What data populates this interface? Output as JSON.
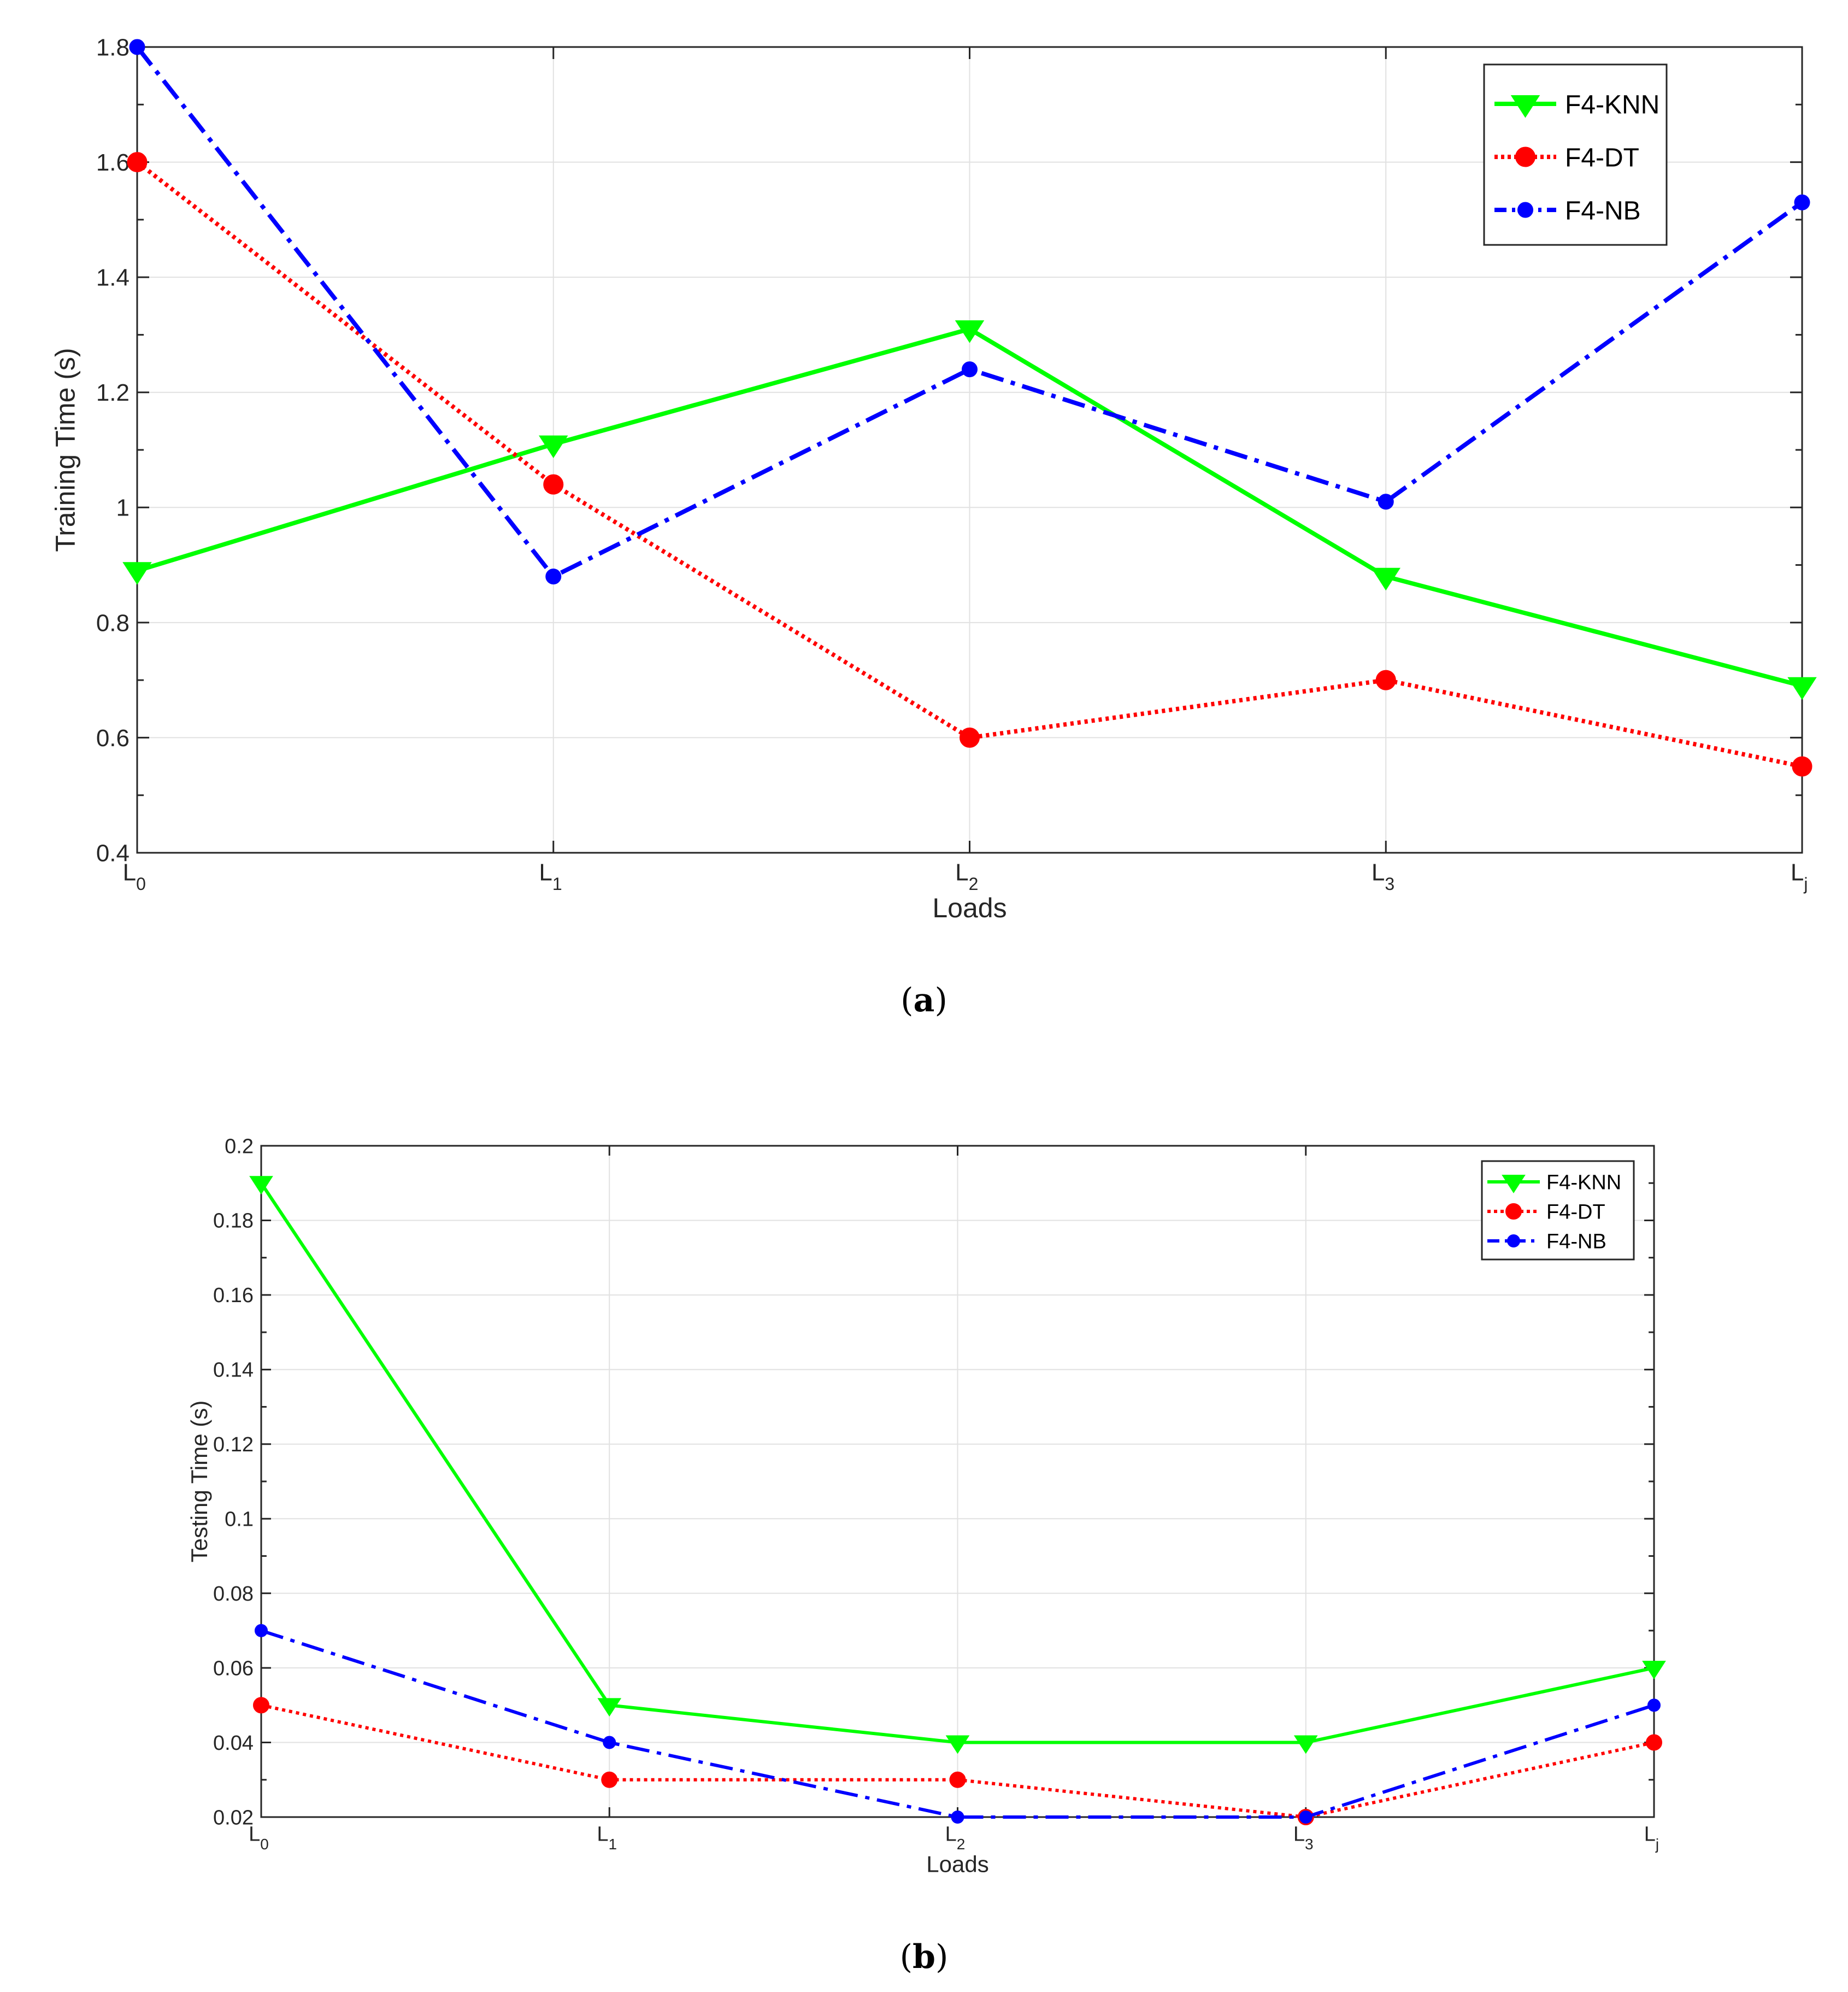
{
  "chart_data": [
    {
      "type": "line",
      "panel": "a",
      "caption_letter": "a",
      "categories": [
        {
          "base": "L",
          "sub": "0"
        },
        {
          "base": "L",
          "sub": "1"
        },
        {
          "base": "L",
          "sub": "2"
        },
        {
          "base": "L",
          "sub": "3"
        },
        {
          "base": "L",
          "sub": "j"
        }
      ],
      "xlabel": "Loads",
      "ylabel": "Training Time (s)",
      "ylim": [
        0.4,
        1.8
      ],
      "yticks": [
        "0.4",
        "0.6",
        "0.8",
        "1",
        "1.2",
        "1.4",
        "1.6",
        "1.8"
      ],
      "grid": true,
      "legend_position": "top-right",
      "series": [
        {
          "name": "F4-KNN",
          "color": "#00ff00",
          "style": "solid",
          "marker": "triangle-down",
          "values": [
            0.89,
            1.11,
            1.31,
            0.88,
            0.69
          ]
        },
        {
          "name": "F4-DT",
          "color": "#ff0000",
          "style": "dotted",
          "marker": "circle",
          "values": [
            1.6,
            1.04,
            0.6,
            0.7,
            0.55
          ]
        },
        {
          "name": "F4-NB",
          "color": "#0000ff",
          "style": "dash-dot",
          "marker": "circle-small",
          "values": [
            1.8,
            0.88,
            1.24,
            1.01,
            1.53
          ]
        }
      ]
    },
    {
      "type": "line",
      "panel": "b",
      "caption_letter": "b",
      "categories": [
        {
          "base": "L",
          "sub": "0"
        },
        {
          "base": "L",
          "sub": "1"
        },
        {
          "base": "L",
          "sub": "2"
        },
        {
          "base": "L",
          "sub": "3"
        },
        {
          "base": "L",
          "sub": "j"
        }
      ],
      "xlabel": "Loads",
      "ylabel": "Testing Time (s)",
      "ylim": [
        0.02,
        0.2
      ],
      "yticks": [
        "0.02",
        "0.04",
        "0.06",
        "0.08",
        "0.1",
        "0.12",
        "0.14",
        "0.16",
        "0.18",
        "0.2"
      ],
      "grid": true,
      "legend_position": "top-right",
      "series": [
        {
          "name": "F4-KNN",
          "color": "#00ff00",
          "style": "solid",
          "marker": "triangle-down",
          "values": [
            0.19,
            0.05,
            0.04,
            0.04,
            0.06
          ]
        },
        {
          "name": "F4-DT",
          "color": "#ff0000",
          "style": "dotted",
          "marker": "circle",
          "values": [
            0.05,
            0.03,
            0.03,
            0.02,
            0.04
          ]
        },
        {
          "name": "F4-NB",
          "color": "#0000ff",
          "style": "dash-dot",
          "marker": "circle-small",
          "values": [
            0.07,
            0.04,
            0.02,
            0.02,
            0.05
          ]
        }
      ]
    }
  ]
}
